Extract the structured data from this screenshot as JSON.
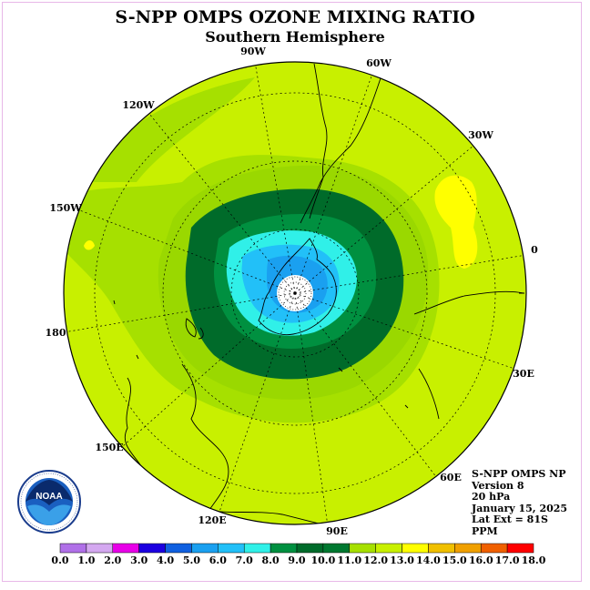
{
  "title": "S-NPP OMPS OZONE MIXING RATIO",
  "subtitle": "Southern Hemisphere",
  "longitude_labels": {
    "w90": "90W",
    "w60": "60W",
    "w30": "30W",
    "lon0": "0",
    "e30": "30E",
    "e60": "60E",
    "e90": "90E",
    "e120": "120E",
    "e150": "150E",
    "lon180": "180",
    "w150": "150W",
    "w120": "120W"
  },
  "info": {
    "instrument": "S-NPP OMPS NP",
    "version": "Version 8",
    "level": "20 hPa",
    "date": "January 15, 2025",
    "lat_ext": "Lat Ext = 81S",
    "units": "PPM"
  },
  "logo_text": "NOAA",
  "colorbar": {
    "ticks": [
      "0.0",
      "1.0",
      "2.0",
      "3.0",
      "4.0",
      "5.0",
      "6.0",
      "7.0",
      "8.0",
      "9.0",
      "10.0",
      "11.0",
      "12.0",
      "13.0",
      "14.0",
      "15.0",
      "16.0",
      "17.0",
      "18.0"
    ],
    "colors": [
      "#b070e8",
      "#d4a8f0",
      "#e800e8",
      "#1c00e0",
      "#1060e0",
      "#1aa0f0",
      "#22c0f8",
      "#30f0e8",
      "#009040",
      "#006b2a",
      "#007830",
      "#a6e000",
      "#c8f000",
      "#ffff00",
      "#f0c000",
      "#f0a000",
      "#f06000",
      "#ff0000",
      "#8b6040"
    ]
  },
  "colors": {
    "land_outline": "#000000",
    "background_field": "#c8f000"
  }
}
